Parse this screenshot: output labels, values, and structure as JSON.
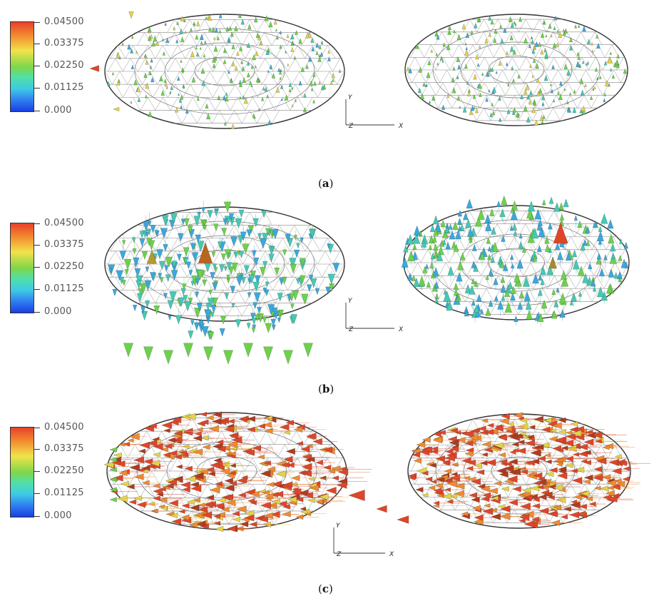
{
  "colorbar": {
    "labels": [
      "0.04500",
      "0.03375",
      "0.02250",
      "0.01125",
      "0.000"
    ]
  },
  "axes": {
    "y": "Y",
    "z": "Z",
    "x": "X"
  },
  "panels": [
    {
      "id": "a",
      "caption": "a"
    },
    {
      "id": "b",
      "caption": "b"
    },
    {
      "id": "c",
      "caption": "c"
    }
  ],
  "colors": {
    "red": "#e0452a",
    "orange": "#f08a30",
    "yellow": "#e6d24a",
    "green": "#6cd24a",
    "teal": "#45c9b6",
    "blue": "#3aa8e0",
    "mesh": "#555555"
  }
}
